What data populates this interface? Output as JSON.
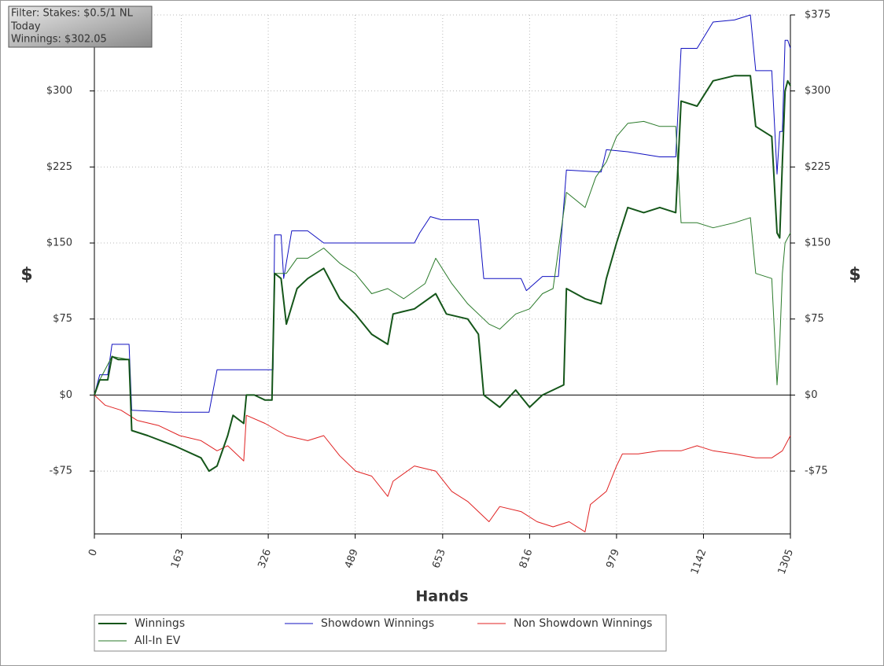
{
  "chart_data": {
    "type": "line",
    "xlabel": "Hands",
    "ylabel": "$",
    "y2label": "$",
    "annotations": [
      "Filter: Stakes: $0.5/1 NL",
      "Today",
      "Winnings: $302.05"
    ],
    "xlim": [
      0,
      1305
    ],
    "xticks": [
      0,
      163,
      326,
      489,
      653,
      816,
      979,
      1142,
      1305
    ],
    "ylim": [
      -137,
      375
    ],
    "yticks": [
      {
        "value": -75,
        "label": "-$75"
      },
      {
        "value": 0,
        "label": "$0"
      },
      {
        "value": 75,
        "label": "$75"
      },
      {
        "value": 150,
        "label": "$150"
      },
      {
        "value": 225,
        "label": "$225"
      },
      {
        "value": 300,
        "label": "$300"
      },
      {
        "value": 375,
        "label": "$375"
      }
    ],
    "y2lim": [
      -137,
      375
    ],
    "y2ticks": [
      {
        "value": -75,
        "label": "-$75"
      },
      {
        "value": 0,
        "label": "$0"
      },
      {
        "value": 75,
        "label": "$75"
      },
      {
        "value": 150,
        "label": "$150"
      },
      {
        "value": 225,
        "label": "$225"
      },
      {
        "value": 300,
        "label": "$300"
      },
      {
        "value": 375,
        "label": "$375"
      }
    ],
    "grid": true,
    "series": [
      {
        "name": "Winnings",
        "color": "#15561a",
        "line_width": 2,
        "x": [
          0,
          10,
          25,
          33,
          45,
          65,
          70,
          100,
          150,
          200,
          215,
          230,
          250,
          260,
          280,
          285,
          300,
          320,
          333,
          338,
          350,
          360,
          380,
          400,
          430,
          460,
          489,
          520,
          550,
          560,
          600,
          640,
          660,
          700,
          720,
          730,
          760,
          790,
          816,
          840,
          860,
          880,
          885,
          920,
          950,
          960,
          979,
          1000,
          1030,
          1060,
          1090,
          1100,
          1130,
          1160,
          1200,
          1230,
          1240,
          1270,
          1280,
          1285,
          1290,
          1295,
          1300,
          1305
        ],
        "values": [
          0,
          15,
          15,
          38,
          35,
          35,
          -35,
          -40,
          -50,
          -62,
          -75,
          -70,
          -40,
          -20,
          -28,
          0,
          0,
          -5,
          -5,
          120,
          115,
          70,
          105,
          115,
          125,
          95,
          80,
          60,
          50,
          80,
          85,
          100,
          80,
          75,
          60,
          0,
          -12,
          5,
          -12,
          0,
          5,
          10,
          105,
          95,
          90,
          115,
          150,
          185,
          180,
          185,
          180,
          290,
          285,
          310,
          315,
          315,
          265,
          255,
          160,
          155,
          230,
          300,
          310,
          305
        ]
      },
      {
        "name": "Showdown Winnings",
        "color": "#1010c0",
        "line_width": 1,
        "x": [
          0,
          10,
          25,
          33,
          65,
          70,
          150,
          215,
          230,
          335,
          338,
          350,
          355,
          370,
          400,
          430,
          600,
          610,
          630,
          650,
          720,
          730,
          800,
          810,
          840,
          870,
          885,
          950,
          960,
          1000,
          1060,
          1090,
          1100,
          1130,
          1160,
          1200,
          1230,
          1240,
          1270,
          1280,
          1285,
          1290,
          1295,
          1300,
          1305
        ],
        "values": [
          0,
          20,
          20,
          50,
          50,
          -15,
          -17,
          -17,
          25,
          25,
          158,
          158,
          115,
          162,
          162,
          150,
          150,
          160,
          176,
          173,
          173,
          115,
          115,
          103,
          117,
          117,
          222,
          220,
          242,
          240,
          235,
          235,
          342,
          342,
          368,
          370,
          375,
          320,
          320,
          218,
          260,
          260,
          350,
          350,
          342
        ]
      },
      {
        "name": "Non Showdown Winnings",
        "color": "#e02222",
        "line_width": 1,
        "x": [
          0,
          20,
          50,
          80,
          120,
          160,
          200,
          230,
          250,
          280,
          285,
          320,
          360,
          400,
          430,
          460,
          490,
          520,
          550,
          560,
          600,
          640,
          670,
          700,
          740,
          760,
          800,
          830,
          860,
          890,
          920,
          930,
          960,
          979,
          990,
          1020,
          1060,
          1100,
          1130,
          1160,
          1200,
          1240,
          1270,
          1290,
          1305
        ],
        "values": [
          0,
          -10,
          -15,
          -25,
          -30,
          -40,
          -45,
          -55,
          -50,
          -65,
          -20,
          -28,
          -40,
          -45,
          -40,
          -60,
          -75,
          -80,
          -100,
          -85,
          -70,
          -75,
          -95,
          -105,
          -125,
          -110,
          -115,
          -125,
          -130,
          -125,
          -135,
          -108,
          -95,
          -70,
          -58,
          -58,
          -55,
          -55,
          -50,
          -55,
          -58,
          -62,
          -62,
          -55,
          -40
        ]
      },
      {
        "name": "All-In EV",
        "color": "#2a7a2a",
        "line_width": 1,
        "x": [
          0,
          10,
          33,
          65,
          70,
          100,
          150,
          200,
          215,
          230,
          250,
          260,
          280,
          285,
          300,
          320,
          333,
          338,
          360,
          380,
          400,
          430,
          460,
          489,
          520,
          550,
          580,
          620,
          640,
          670,
          700,
          740,
          760,
          790,
          816,
          840,
          860,
          885,
          920,
          940,
          960,
          979,
          1000,
          1030,
          1060,
          1090,
          1100,
          1130,
          1160,
          1200,
          1230,
          1240,
          1270,
          1280,
          1285,
          1290,
          1295,
          1300,
          1305
        ],
        "values": [
          0,
          15,
          38,
          35,
          -35,
          -40,
          -50,
          -62,
          -75,
          -70,
          -40,
          -20,
          -28,
          0,
          0,
          -5,
          -5,
          120,
          120,
          135,
          135,
          145,
          130,
          120,
          100,
          105,
          95,
          110,
          135,
          110,
          90,
          70,
          65,
          80,
          85,
          100,
          105,
          200,
          185,
          215,
          230,
          255,
          268,
          270,
          265,
          265,
          170,
          170,
          165,
          170,
          175,
          120,
          115,
          10,
          50,
          120,
          150,
          155,
          160
        ]
      }
    ]
  }
}
